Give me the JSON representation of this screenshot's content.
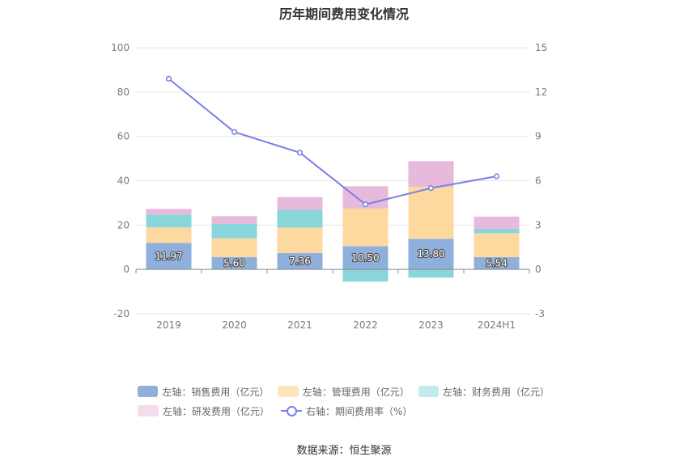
{
  "chart_data": {
    "type": "bar",
    "title": "历年期间费用变化情况",
    "categories": [
      "2019",
      "2020",
      "2021",
      "2022",
      "2023",
      "2024H1"
    ],
    "left_axis": {
      "ylim": [
        -20,
        100
      ],
      "ticks": [
        "100",
        "80",
        "60",
        "40",
        "20",
        "0",
        "-20"
      ]
    },
    "right_axis": {
      "ylim": [
        -3,
        15
      ],
      "ticks": [
        "15",
        "12",
        "9",
        "6",
        "3",
        "0",
        "-3"
      ]
    },
    "series": [
      {
        "name": "左轴：销售费用（亿元）",
        "kind": "bar",
        "color": "#8fb0dc",
        "values": [
          11.97,
          5.6,
          7.36,
          10.5,
          13.8,
          5.54
        ],
        "labels": [
          "11.97",
          "5.60",
          "7.36",
          "10.50",
          "13.80",
          "5.54"
        ]
      },
      {
        "name": "左轴：管理费用（亿元）",
        "kind": "bar",
        "color": "#fdd9a0",
        "values": [
          7.0,
          8.4,
          11.5,
          17.0,
          23.5,
          10.8
        ]
      },
      {
        "name": "左轴：财务费用（亿元）",
        "kind": "bar",
        "color": "#89d6da",
        "values": [
          5.8,
          6.5,
          8.0,
          -5.5,
          -3.7,
          2.0
        ]
      },
      {
        "name": "左轴：研发费用（亿元）",
        "kind": "bar",
        "color": "#e7b9db",
        "values": [
          2.5,
          3.5,
          5.8,
          10.0,
          11.5,
          5.5
        ]
      },
      {
        "name": "右轴：期间费用率（%）",
        "kind": "line",
        "axis": "right",
        "color": "#7b7fe6",
        "values": [
          12.9,
          9.3,
          7.9,
          4.4,
          5.5,
          6.3
        ]
      }
    ],
    "grid": true,
    "legend_position": "bottom"
  },
  "source_text": "数据来源：恒生聚源"
}
